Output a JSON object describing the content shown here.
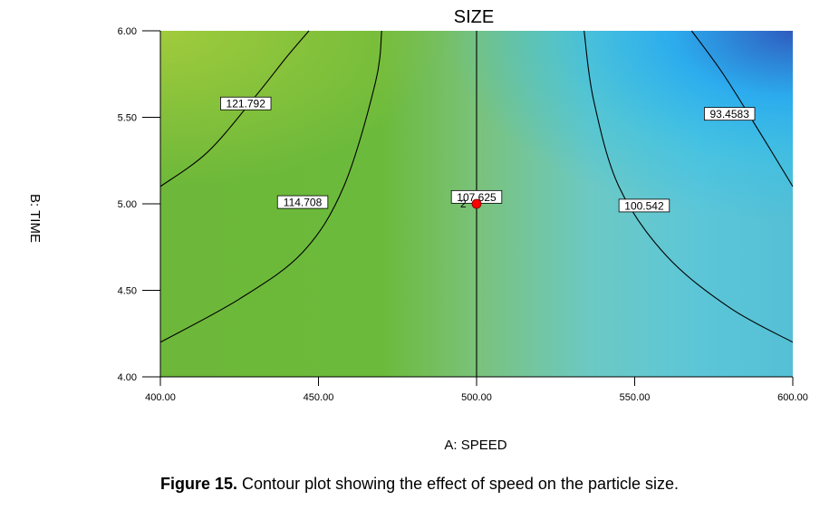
{
  "chart_data": {
    "type": "contour",
    "title": "SIZE",
    "xlabel": "A: SPEED",
    "ylabel": "B: TIME",
    "xlim": [
      400,
      600
    ],
    "ylim": [
      4.0,
      6.0
    ],
    "x_ticks": [
      "400.00",
      "450.00",
      "500.00",
      "550.00",
      "600.00"
    ],
    "y_ticks": [
      "4.00",
      "4.50",
      "5.00",
      "5.50",
      "6.00"
    ],
    "grid": false,
    "contours": [
      {
        "level": "121.792",
        "label_x": 427,
        "label_y": 5.58,
        "points": [
          [
            400,
            5.1
          ],
          [
            415,
            5.3
          ],
          [
            430,
            5.62
          ],
          [
            440,
            5.85
          ],
          [
            447,
            6.0
          ]
        ]
      },
      {
        "level": "114.708",
        "label_x": 445,
        "label_y": 5.01,
        "points": [
          [
            400,
            4.2
          ],
          [
            425,
            4.45
          ],
          [
            445,
            4.72
          ],
          [
            458,
            5.1
          ],
          [
            468,
            5.7
          ],
          [
            470,
            6.0
          ]
        ]
      },
      {
        "level": "107.625",
        "label_x": 500,
        "label_y": 5.04,
        "points": [
          [
            500,
            4.0
          ],
          [
            500,
            6.0
          ]
        ]
      },
      {
        "level": "100.542",
        "label_x": 553,
        "label_y": 4.99,
        "points": [
          [
            534,
            6.0
          ],
          [
            537,
            5.6
          ],
          [
            545,
            5.1
          ],
          [
            560,
            4.7
          ],
          [
            580,
            4.4
          ],
          [
            600,
            4.2
          ]
        ]
      },
      {
        "level": "93.4583",
        "label_x": 580,
        "label_y": 5.52,
        "points": [
          [
            568,
            6.0
          ],
          [
            578,
            5.75
          ],
          [
            590,
            5.4
          ],
          [
            600,
            5.1
          ]
        ]
      }
    ],
    "center_point": {
      "x": 500,
      "y": 5.0,
      "label": "2",
      "color": "#ff0000"
    },
    "colors": {
      "left_green": "#6db83a",
      "top_left_green": "#a3cc3c",
      "mid_green": "#7cc174",
      "cyan": "#5ec8d6",
      "bright_cyan": "#27bdf0",
      "deep_blue": "#2f5bbf"
    }
  },
  "caption": {
    "label": "Figure 15.",
    "text": " Contour plot showing the effect of speed on the particle size."
  }
}
